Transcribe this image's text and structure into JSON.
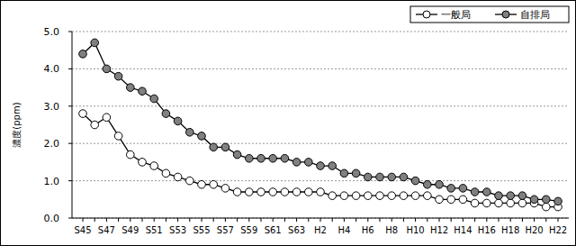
{
  "chart_data": {
    "type": "line",
    "y_label": "濃度(ppm)",
    "categories": [
      "S45",
      null,
      "S47",
      null,
      "S49",
      null,
      "S51",
      null,
      "S53",
      null,
      "S55",
      null,
      "S57",
      null,
      "S59",
      null,
      "S61",
      null,
      "S63",
      null,
      "H2",
      null,
      "H4",
      null,
      "H6",
      null,
      "H8",
      null,
      "H10",
      null,
      "H12",
      null,
      "H14",
      null,
      "H16",
      null,
      "H18",
      null,
      "H20",
      null,
      "H22"
    ],
    "series": [
      {
        "name": "一般局",
        "color": "#ffffff",
        "marker": "circle",
        "values": [
          2.8,
          2.5,
          2.7,
          2.2,
          1.7,
          1.5,
          1.4,
          1.2,
          1.1,
          1.0,
          0.9,
          0.9,
          0.8,
          0.7,
          0.7,
          0.7,
          0.7,
          0.7,
          0.7,
          0.7,
          0.7,
          0.6,
          0.6,
          0.6,
          0.6,
          0.6,
          0.6,
          0.6,
          0.6,
          0.6,
          0.5,
          0.5,
          0.5,
          0.4,
          0.4,
          0.4,
          0.4,
          0.4,
          0.4,
          0.3,
          0.3
        ]
      },
      {
        "name": "自排局",
        "color": "#808080",
        "marker": "circle",
        "values": [
          4.4,
          4.7,
          4.0,
          3.8,
          3.5,
          3.4,
          3.2,
          2.8,
          2.6,
          2.3,
          2.2,
          1.9,
          1.9,
          1.7,
          1.6,
          1.6,
          1.6,
          1.6,
          1.5,
          1.5,
          1.4,
          1.4,
          1.2,
          1.2,
          1.1,
          1.1,
          1.1,
          1.1,
          1.0,
          0.9,
          0.9,
          0.8,
          0.8,
          0.7,
          0.7,
          0.6,
          0.6,
          0.6,
          0.5,
          0.5,
          0.45
        ]
      }
    ],
    "ylim": [
      0,
      5
    ],
    "yticks": [
      {
        "value": 0,
        "label": "0.0"
      },
      {
        "value": 1,
        "label": "1.0"
      },
      {
        "value": 2,
        "label": "2.0"
      },
      {
        "value": 3,
        "label": "3.0"
      },
      {
        "value": 4,
        "label": "4.0"
      },
      {
        "value": 5,
        "label": "5.0"
      }
    ],
    "grid": true,
    "legend": "top-right"
  }
}
